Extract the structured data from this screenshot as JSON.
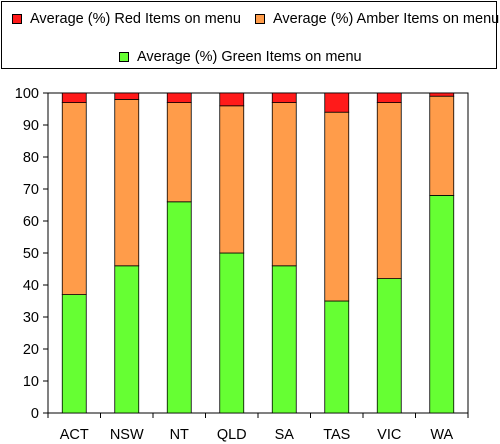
{
  "chart_data": {
    "type": "bar",
    "stacked": true,
    "categories": [
      "ACT",
      "NSW",
      "NT",
      "QLD",
      "SA",
      "TAS",
      "VIC",
      "WA"
    ],
    "series": [
      {
        "name": "Average (%) Green Items on menu",
        "color": "#66ff33",
        "values": [
          37,
          46,
          66,
          50,
          46,
          35,
          42,
          68
        ]
      },
      {
        "name": "Average (%) Amber Items on menu",
        "color": "#ff9c4a",
        "values": [
          60,
          52,
          31,
          46,
          51,
          59,
          55,
          31
        ]
      },
      {
        "name": "Average (%) Red Items on menu",
        "color": "#ff1a1a",
        "values": [
          3,
          2,
          3,
          4,
          3,
          6,
          3,
          1
        ]
      }
    ],
    "legend_order": [
      2,
      1,
      0
    ],
    "legend_position": "top",
    "ylim": [
      0,
      100
    ],
    "yticks": [
      0,
      10,
      20,
      30,
      40,
      50,
      60,
      70,
      80,
      90,
      100
    ],
    "grid": false,
    "title": "",
    "xlabel": "",
    "ylabel": ""
  }
}
